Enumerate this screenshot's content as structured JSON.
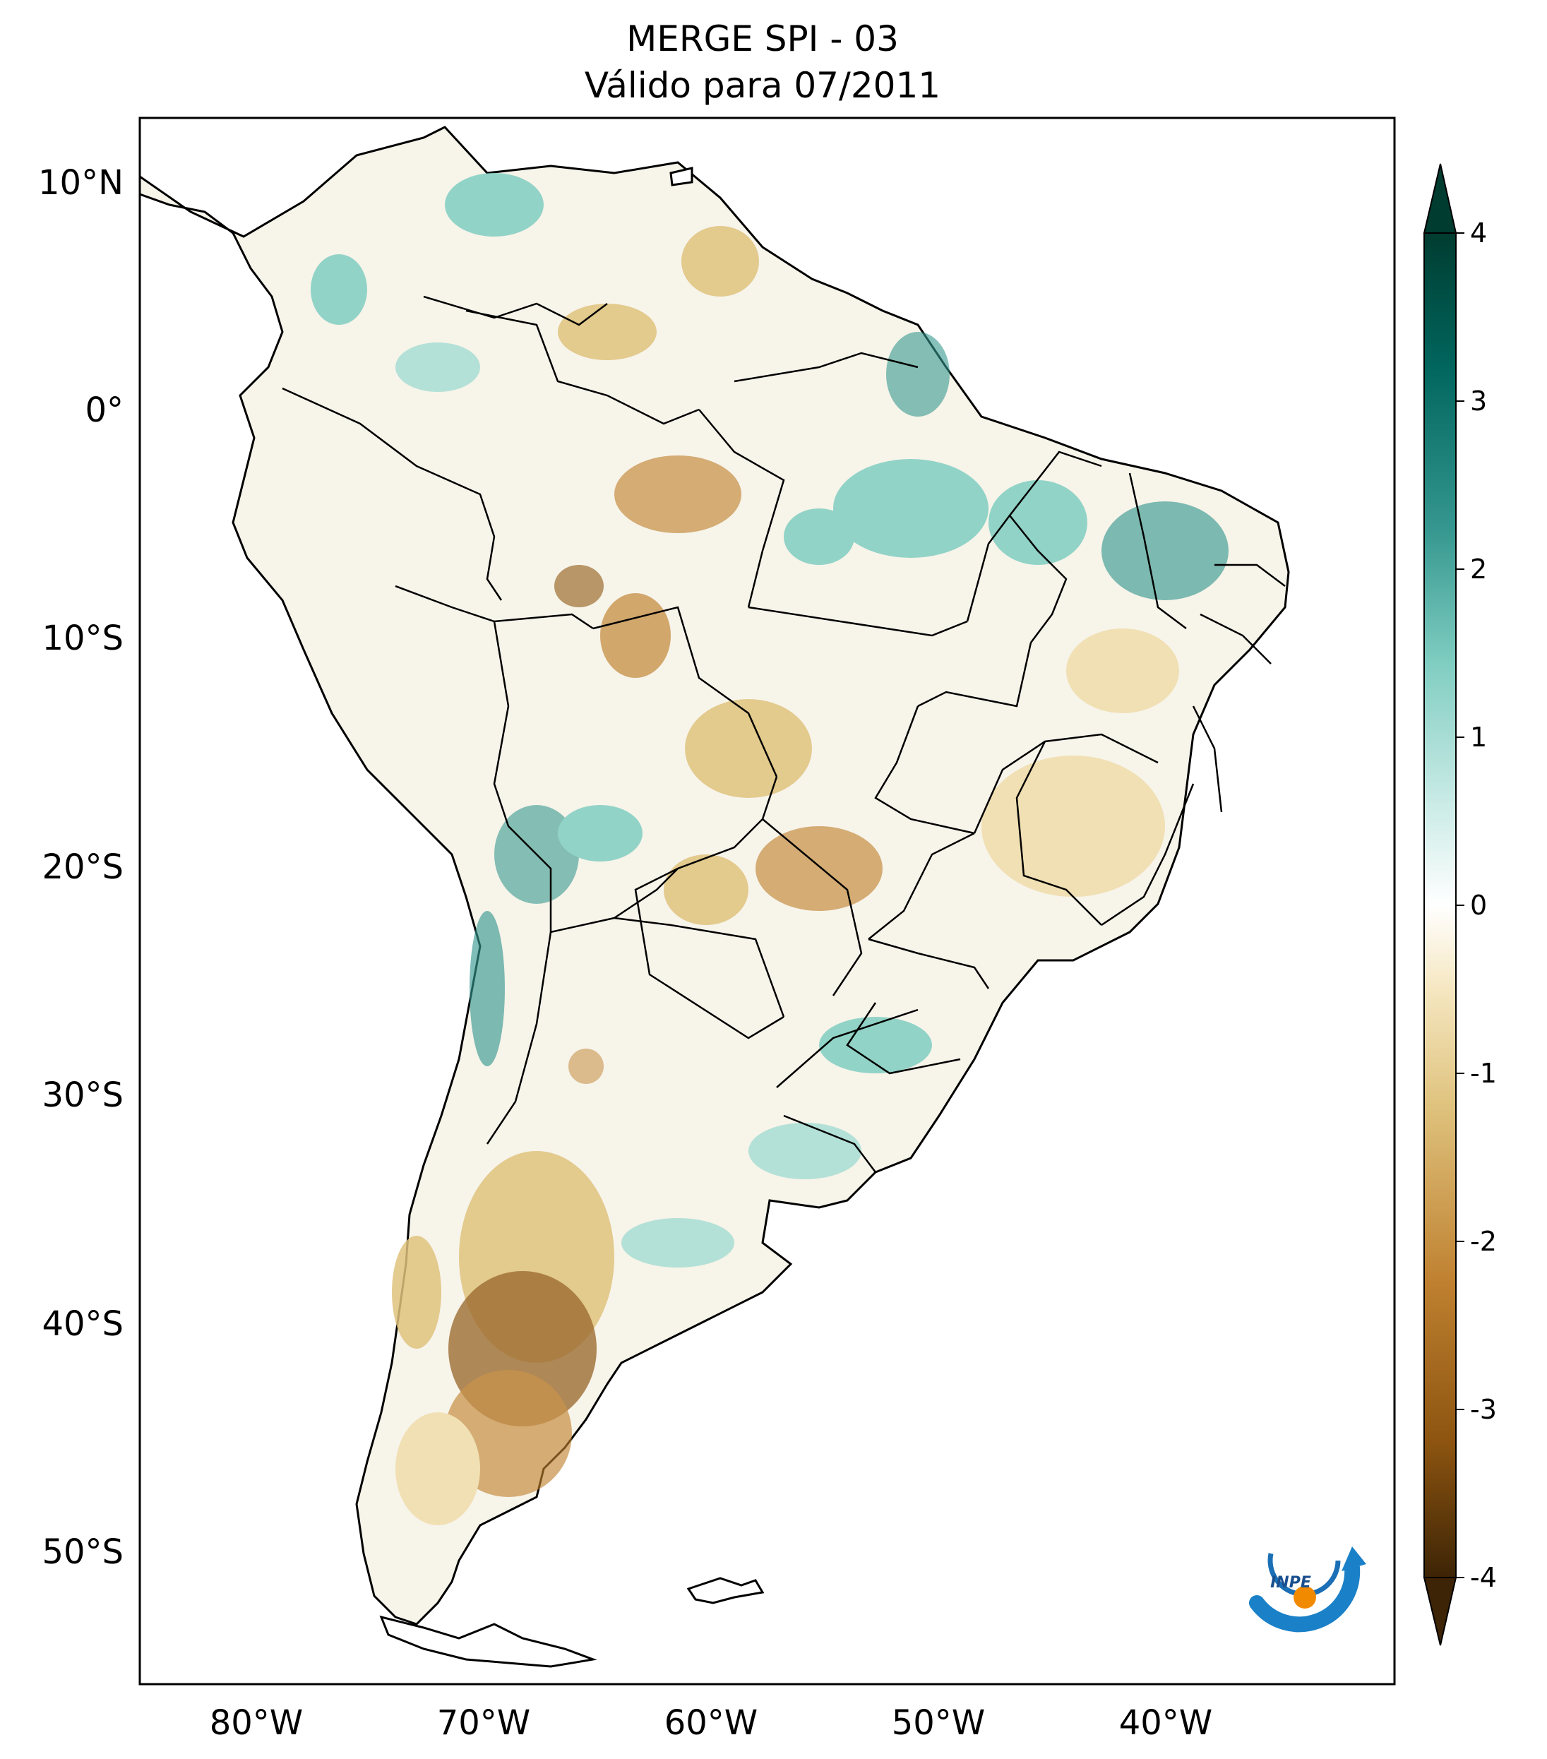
{
  "title": {
    "line1": "MERGE   SPI - 03",
    "line2": "Válido para 07/2011"
  },
  "map": {
    "lat_labels": [
      "10°N",
      "0°",
      "10°S",
      "20°S",
      "30°S",
      "40°S",
      "50°S"
    ],
    "lon_labels": [
      "80°W",
      "70°W",
      "60°W",
      "50°W",
      "40°W"
    ],
    "extent": {
      "lon": [
        -85,
        -30
      ],
      "lat": [
        -56,
        13
      ]
    }
  },
  "colorbar": {
    "ticks": [
      "4",
      "3",
      "2",
      "1",
      "0",
      "-1",
      "-2",
      "-3",
      "-4"
    ],
    "range": [
      -4,
      4
    ],
    "colors": [
      "#3d2406",
      "#8c5410",
      "#bf8130",
      "#dfc27d",
      "#f6e8c3",
      "#ffffff",
      "#c7eae5",
      "#80cdc1",
      "#35978f",
      "#01665e",
      "#003c30"
    ]
  },
  "logo": {
    "text": "INPE"
  }
}
